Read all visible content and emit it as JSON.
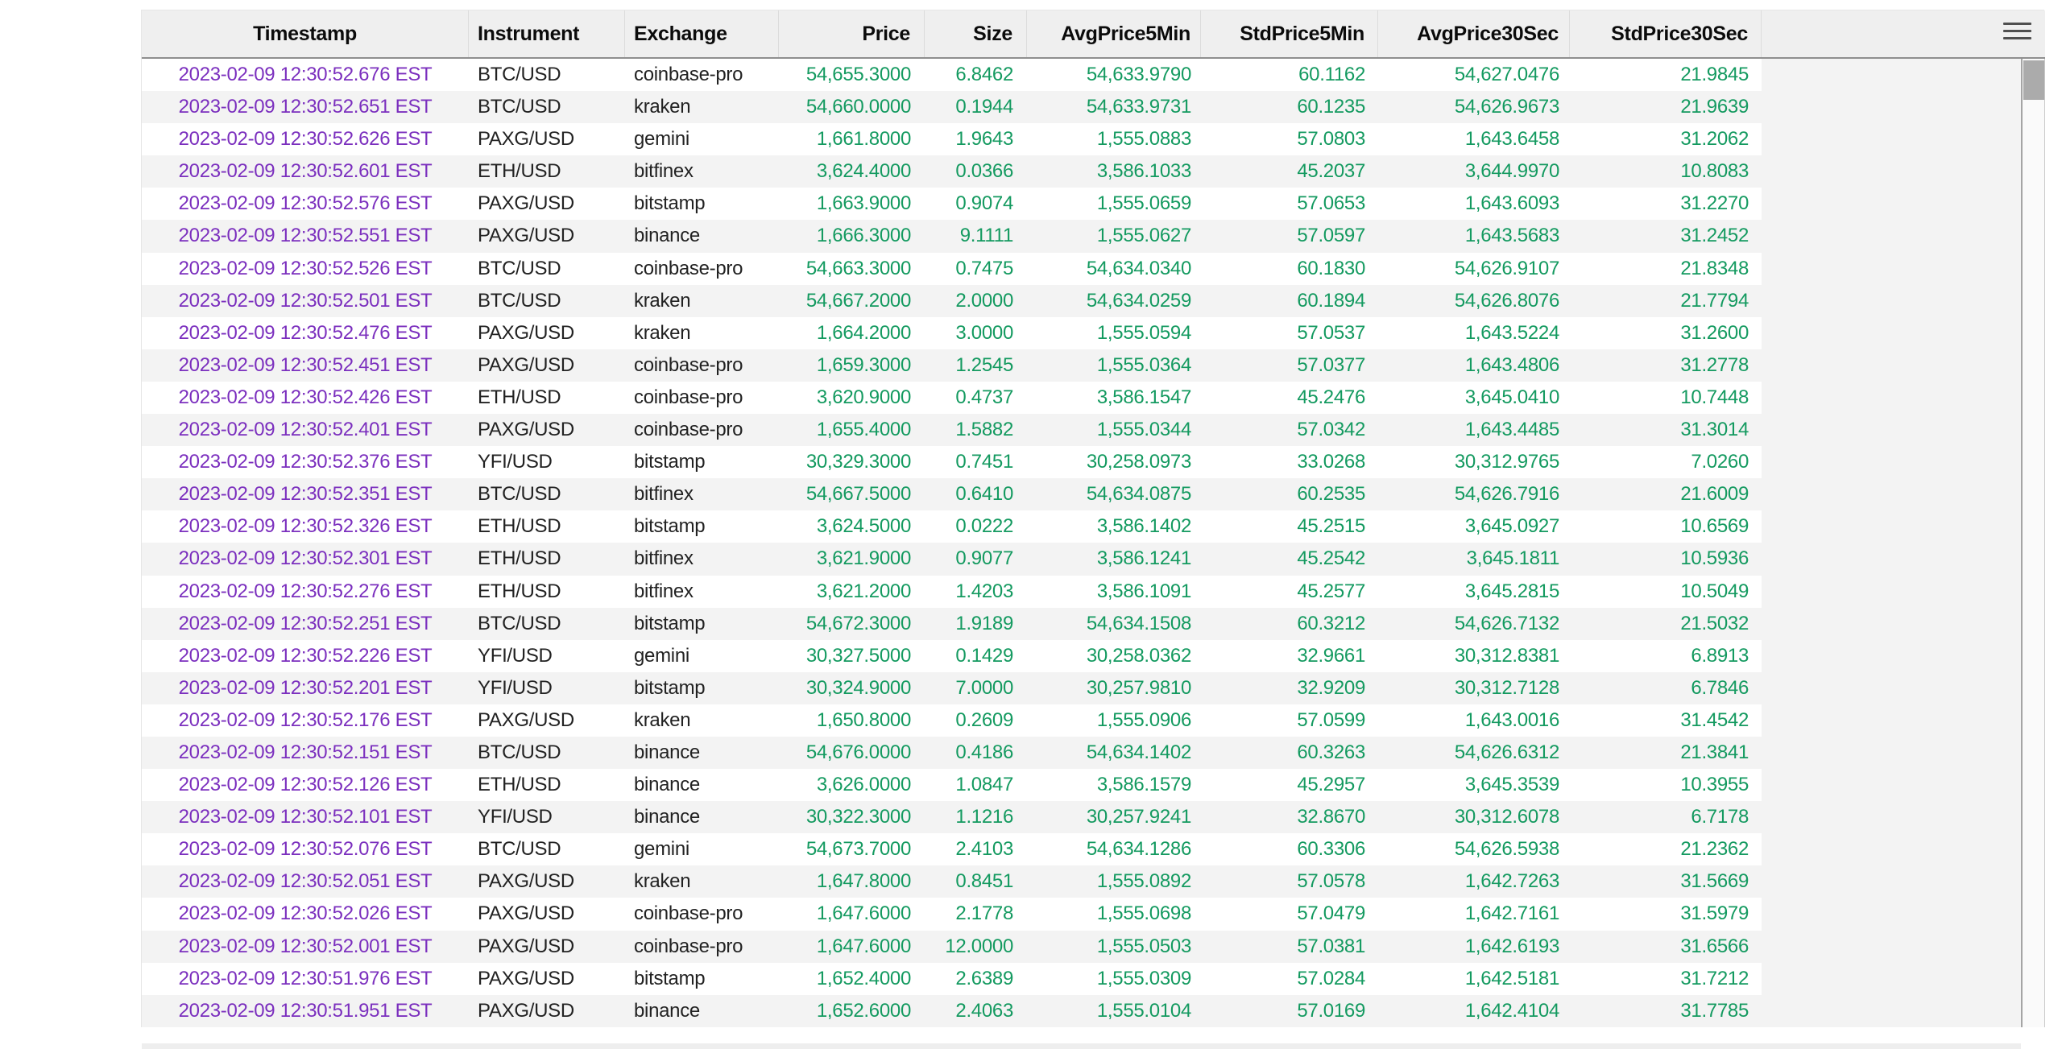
{
  "header": {
    "menu_icon": "hamburger-icon"
  },
  "colors": {
    "timestamp_text": "#7B2FBE",
    "number_text": "#149A60",
    "instrument_text": "#222222",
    "header_bg": "#EFEFEF",
    "stripe_bg": "#F3F3F3",
    "header_bottom_border": "#8F8F8F",
    "scrollbar_thumb": "#ABABAB",
    "menu_icon_color": "#4F4F4F"
  },
  "table": {
    "columns": [
      {
        "key": "timestamp",
        "label": "Timestamp",
        "type": "timestamp"
      },
      {
        "key": "instrument",
        "label": "Instrument",
        "type": "text"
      },
      {
        "key": "exchange",
        "label": "Exchange",
        "type": "text"
      },
      {
        "key": "price",
        "label": "Price",
        "type": "number"
      },
      {
        "key": "size",
        "label": "Size",
        "type": "number"
      },
      {
        "key": "avgprice5min",
        "label": "AvgPrice5Min",
        "type": "number"
      },
      {
        "key": "stdprice5min",
        "label": "StdPrice5Min",
        "type": "number"
      },
      {
        "key": "avgprice30sec",
        "label": "AvgPrice30Sec",
        "type": "number"
      },
      {
        "key": "stdprice30sec",
        "label": "StdPrice30Sec",
        "type": "number"
      }
    ],
    "rows": [
      [
        "2023-02-09 12:30:52.676 EST",
        "BTC/USD",
        "coinbase-pro",
        "54,655.3000",
        "6.8462",
        "54,633.9790",
        "60.1162",
        "54,627.0476",
        "21.9845"
      ],
      [
        "2023-02-09 12:30:52.651 EST",
        "BTC/USD",
        "kraken",
        "54,660.0000",
        "0.1944",
        "54,633.9731",
        "60.1235",
        "54,626.9673",
        "21.9639"
      ],
      [
        "2023-02-09 12:30:52.626 EST",
        "PAXG/USD",
        "gemini",
        "1,661.8000",
        "1.9643",
        "1,555.0883",
        "57.0803",
        "1,643.6458",
        "31.2062"
      ],
      [
        "2023-02-09 12:30:52.601 EST",
        "ETH/USD",
        "bitfinex",
        "3,624.4000",
        "0.0366",
        "3,586.1033",
        "45.2037",
        "3,644.9970",
        "10.8083"
      ],
      [
        "2023-02-09 12:30:52.576 EST",
        "PAXG/USD",
        "bitstamp",
        "1,663.9000",
        "0.9074",
        "1,555.0659",
        "57.0653",
        "1,643.6093",
        "31.2270"
      ],
      [
        "2023-02-09 12:30:52.551 EST",
        "PAXG/USD",
        "binance",
        "1,666.3000",
        "9.1111",
        "1,555.0627",
        "57.0597",
        "1,643.5683",
        "31.2452"
      ],
      [
        "2023-02-09 12:30:52.526 EST",
        "BTC/USD",
        "coinbase-pro",
        "54,663.3000",
        "0.7475",
        "54,634.0340",
        "60.1830",
        "54,626.9107",
        "21.8348"
      ],
      [
        "2023-02-09 12:30:52.501 EST",
        "BTC/USD",
        "kraken",
        "54,667.2000",
        "2.0000",
        "54,634.0259",
        "60.1894",
        "54,626.8076",
        "21.7794"
      ],
      [
        "2023-02-09 12:30:52.476 EST",
        "PAXG/USD",
        "kraken",
        "1,664.2000",
        "3.0000",
        "1,555.0594",
        "57.0537",
        "1,643.5224",
        "31.2600"
      ],
      [
        "2023-02-09 12:30:52.451 EST",
        "PAXG/USD",
        "coinbase-pro",
        "1,659.3000",
        "1.2545",
        "1,555.0364",
        "57.0377",
        "1,643.4806",
        "31.2778"
      ],
      [
        "2023-02-09 12:30:52.426 EST",
        "ETH/USD",
        "coinbase-pro",
        "3,620.9000",
        "0.4737",
        "3,586.1547",
        "45.2476",
        "3,645.0410",
        "10.7448"
      ],
      [
        "2023-02-09 12:30:52.401 EST",
        "PAXG/USD",
        "coinbase-pro",
        "1,655.4000",
        "1.5882",
        "1,555.0344",
        "57.0342",
        "1,643.4485",
        "31.3014"
      ],
      [
        "2023-02-09 12:30:52.376 EST",
        "YFI/USD",
        "bitstamp",
        "30,329.3000",
        "0.7451",
        "30,258.0973",
        "33.0268",
        "30,312.9765",
        "7.0260"
      ],
      [
        "2023-02-09 12:30:52.351 EST",
        "BTC/USD",
        "bitfinex",
        "54,667.5000",
        "0.6410",
        "54,634.0875",
        "60.2535",
        "54,626.7916",
        "21.6009"
      ],
      [
        "2023-02-09 12:30:52.326 EST",
        "ETH/USD",
        "bitstamp",
        "3,624.5000",
        "0.0222",
        "3,586.1402",
        "45.2515",
        "3,645.0927",
        "10.6569"
      ],
      [
        "2023-02-09 12:30:52.301 EST",
        "ETH/USD",
        "bitfinex",
        "3,621.9000",
        "0.9077",
        "3,586.1241",
        "45.2542",
        "3,645.1811",
        "10.5936"
      ],
      [
        "2023-02-09 12:30:52.276 EST",
        "ETH/USD",
        "bitfinex",
        "3,621.2000",
        "1.4203",
        "3,586.1091",
        "45.2577",
        "3,645.2815",
        "10.5049"
      ],
      [
        "2023-02-09 12:30:52.251 EST",
        "BTC/USD",
        "bitstamp",
        "54,672.3000",
        "1.9189",
        "54,634.1508",
        "60.3212",
        "54,626.7132",
        "21.5032"
      ],
      [
        "2023-02-09 12:30:52.226 EST",
        "YFI/USD",
        "gemini",
        "30,327.5000",
        "0.1429",
        "30,258.0362",
        "32.9661",
        "30,312.8381",
        "6.8913"
      ],
      [
        "2023-02-09 12:30:52.201 EST",
        "YFI/USD",
        "bitstamp",
        "30,324.9000",
        "7.0000",
        "30,257.9810",
        "32.9209",
        "30,312.7128",
        "6.7846"
      ],
      [
        "2023-02-09 12:30:52.176 EST",
        "PAXG/USD",
        "kraken",
        "1,650.8000",
        "0.2609",
        "1,555.0906",
        "57.0599",
        "1,643.0016",
        "31.4542"
      ],
      [
        "2023-02-09 12:30:52.151 EST",
        "BTC/USD",
        "binance",
        "54,676.0000",
        "0.4186",
        "54,634.1402",
        "60.3263",
        "54,626.6312",
        "21.3841"
      ],
      [
        "2023-02-09 12:30:52.126 EST",
        "ETH/USD",
        "binance",
        "3,626.0000",
        "1.0847",
        "3,586.1579",
        "45.2957",
        "3,645.3539",
        "10.3955"
      ],
      [
        "2023-02-09 12:30:52.101 EST",
        "YFI/USD",
        "binance",
        "30,322.3000",
        "1.1216",
        "30,257.9241",
        "32.8670",
        "30,312.6078",
        "6.7178"
      ],
      [
        "2023-02-09 12:30:52.076 EST",
        "BTC/USD",
        "gemini",
        "54,673.7000",
        "2.4103",
        "54,634.1286",
        "60.3306",
        "54,626.5938",
        "21.2362"
      ],
      [
        "2023-02-09 12:30:52.051 EST",
        "PAXG/USD",
        "kraken",
        "1,647.8000",
        "0.8451",
        "1,555.0892",
        "57.0578",
        "1,642.7263",
        "31.5669"
      ],
      [
        "2023-02-09 12:30:52.026 EST",
        "PAXG/USD",
        "coinbase-pro",
        "1,647.6000",
        "2.1778",
        "1,555.0698",
        "57.0479",
        "1,642.7161",
        "31.5979"
      ],
      [
        "2023-02-09 12:30:52.001 EST",
        "PAXG/USD",
        "coinbase-pro",
        "1,647.6000",
        "12.0000",
        "1,555.0503",
        "57.0381",
        "1,642.6193",
        "31.6566"
      ],
      [
        "2023-02-09 12:30:51.976 EST",
        "PAXG/USD",
        "bitstamp",
        "1,652.4000",
        "2.6389",
        "1,555.0309",
        "57.0284",
        "1,642.5181",
        "31.7212"
      ],
      [
        "2023-02-09 12:30:51.951 EST",
        "PAXG/USD",
        "binance",
        "1,652.6000",
        "2.4063",
        "1,555.0104",
        "57.0169",
        "1,642.4104",
        "31.7785"
      ]
    ]
  }
}
